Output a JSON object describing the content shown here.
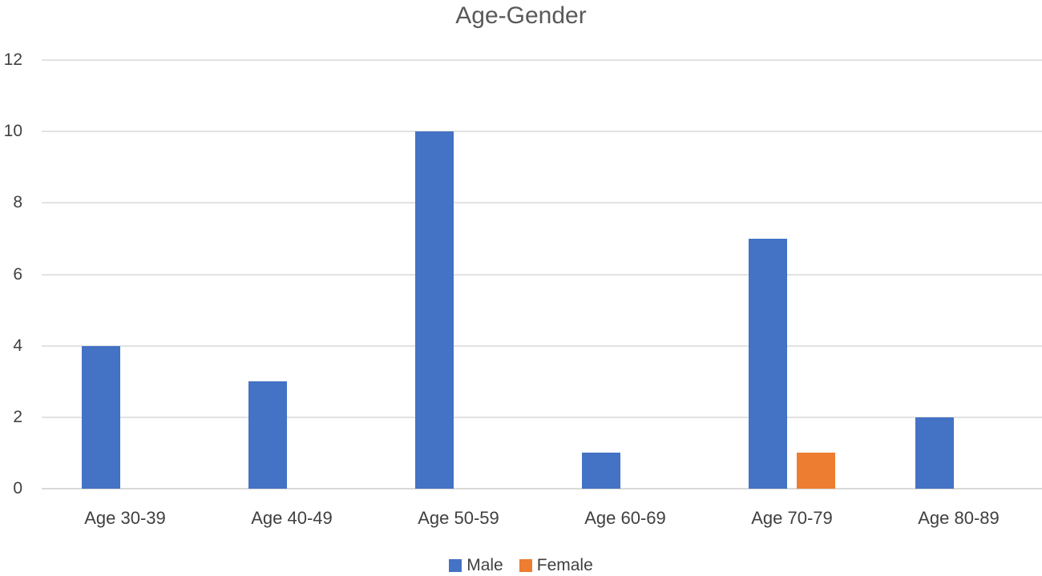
{
  "chart_data": {
    "type": "bar",
    "title": "Age-Gender",
    "categories": [
      "Age 30-39",
      "Age 40-49",
      "Age 50-59",
      "Age 60-69",
      "Age 70-79",
      "Age 80-89"
    ],
    "series": [
      {
        "name": "Male",
        "color": "#4472C4",
        "values": [
          4,
          3,
          10,
          1,
          7,
          2
        ]
      },
      {
        "name": "Female",
        "color": "#ED7D31",
        "values": [
          0,
          0,
          0,
          0,
          1,
          0
        ]
      }
    ],
    "xlabel": "",
    "ylabel": "",
    "ylim": [
      0,
      12
    ],
    "yticks": [
      0,
      2,
      4,
      6,
      8,
      10,
      12
    ],
    "grid": true,
    "legend_position": "bottom"
  },
  "colors": {
    "title_text": "#595959",
    "axis_text": "#404040",
    "gridline": "#e2e2e2",
    "axis_line": "#d9d9d9",
    "background": "#ffffff"
  }
}
